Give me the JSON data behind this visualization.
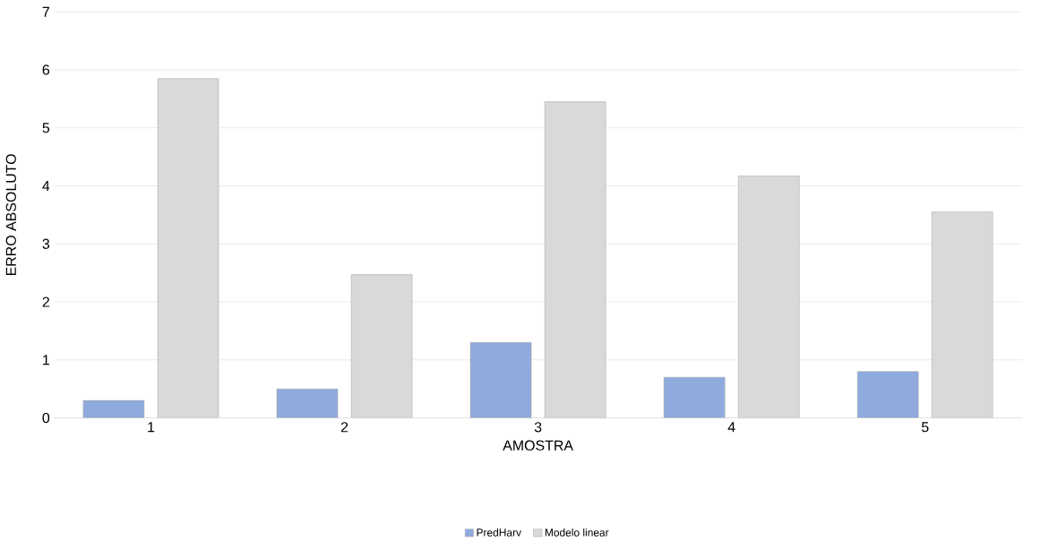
{
  "chart_data": {
    "type": "bar",
    "xlabel": "AMOSTRA",
    "ylabel": "ERRO ABSOLUTO",
    "categories": [
      "1",
      "2",
      "3",
      "4",
      "5"
    ],
    "series": [
      {
        "name": "PredHarv",
        "color": "#8faadc",
        "values": [
          0.3,
          0.5,
          1.3,
          0.7,
          0.8
        ]
      },
      {
        "name": "Modelo linear",
        "color": "#d9d9d9",
        "values": [
          5.85,
          2.47,
          5.45,
          4.17,
          3.55
        ]
      }
    ],
    "ylim": [
      0,
      7
    ],
    "yticks": [
      0,
      1,
      2,
      3,
      4,
      5,
      6,
      7
    ],
    "grid": "y",
    "legend": "bottom"
  }
}
